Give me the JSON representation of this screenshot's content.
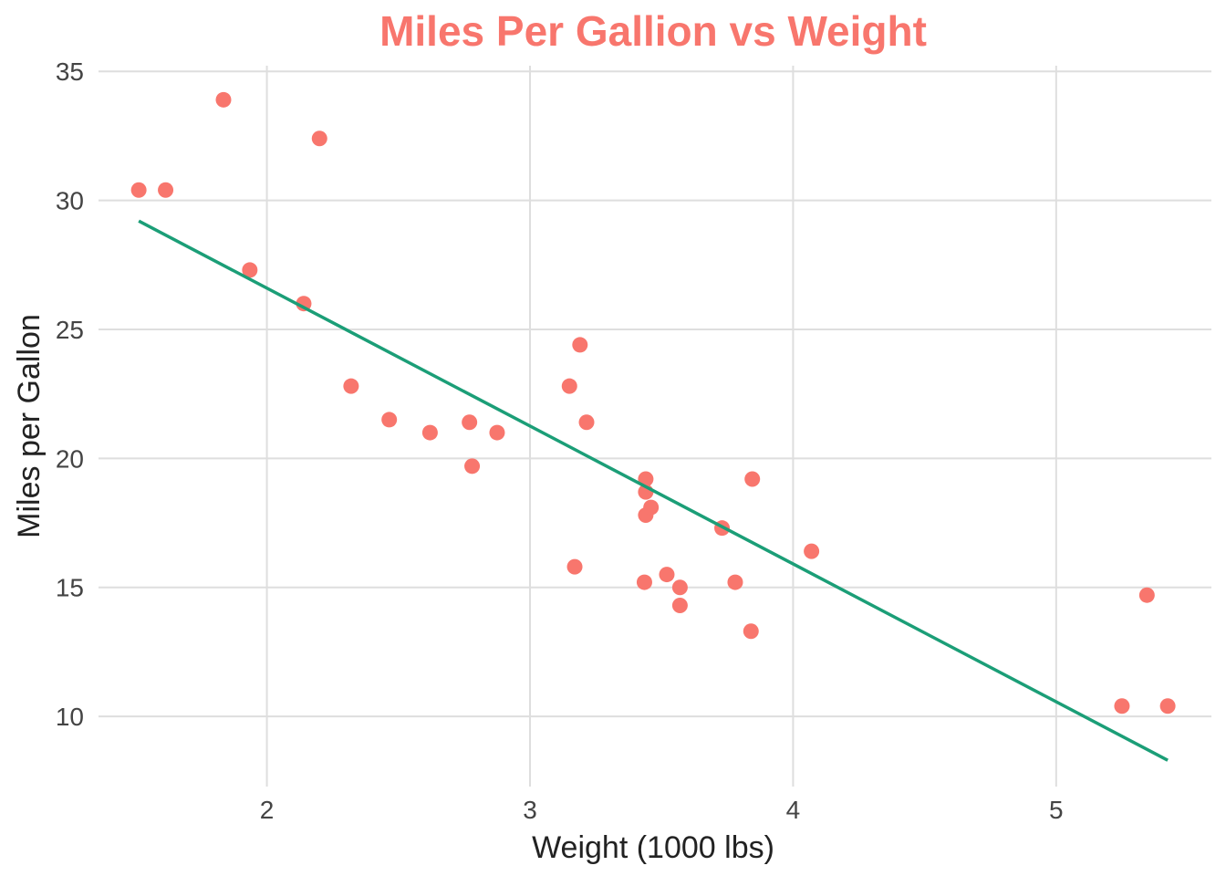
{
  "chart_data": {
    "type": "scatter",
    "title": "Miles Per Gallion vs Weight",
    "xlabel": "Weight (1000 lbs)",
    "ylabel": "Miles per Gallon",
    "xlim": [
      1.36,
      5.59
    ],
    "ylim": [
      7.28,
      35.22
    ],
    "x_ticks": [
      2,
      3,
      4,
      5
    ],
    "x_tick_labels": [
      "2",
      "3",
      "4",
      "5"
    ],
    "y_ticks": [
      10,
      15,
      20,
      25,
      30,
      35
    ],
    "y_tick_labels": [
      "10",
      "15",
      "20",
      "25",
      "30",
      "35"
    ],
    "grid": true,
    "legend": "none",
    "colors": {
      "points": "#F8766D",
      "trend_line": "#1B9E77",
      "title": "#F8766D",
      "grid": "#DEDEDE"
    },
    "series": [
      {
        "kind": "points",
        "x": [
          1.513,
          1.615,
          1.835,
          1.935,
          2.14,
          2.2,
          2.32,
          2.465,
          2.62,
          2.77,
          2.78,
          2.875,
          3.15,
          3.17,
          3.19,
          3.215,
          3.435,
          3.44,
          3.44,
          3.44,
          3.46,
          3.52,
          3.57,
          3.57,
          3.73,
          3.78,
          3.84,
          3.845,
          4.07,
          5.25,
          5.345,
          5.424
        ],
        "y": [
          30.4,
          30.4,
          33.9,
          27.3,
          26.0,
          32.4,
          22.8,
          21.5,
          21.0,
          21.4,
          19.7,
          21.0,
          22.8,
          15.8,
          24.4,
          21.4,
          15.2,
          17.8,
          18.7,
          19.2,
          18.1,
          15.5,
          15.0,
          14.3,
          17.3,
          15.2,
          13.3,
          19.2,
          16.4,
          10.4,
          14.7,
          10.4
        ]
      },
      {
        "kind": "linear-fit",
        "x": [
          1.513,
          5.424
        ],
        "y": [
          29.2,
          8.3
        ]
      }
    ]
  }
}
